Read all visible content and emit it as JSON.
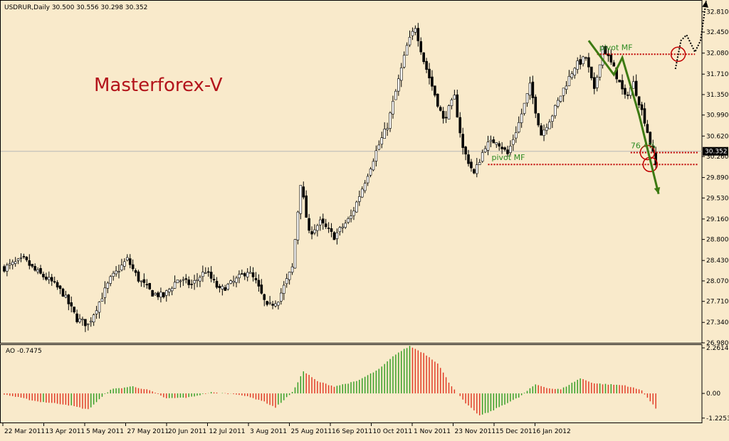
{
  "chart_data": [
    {
      "type": "candlestick",
      "symbol_header": "USDRUR,Daily  30.500 30.556 30.298 30.352",
      "watermark": "Masterforex-V",
      "y_ticks": [
        "32.810",
        "32.450",
        "32.080",
        "31.710",
        "31.350",
        "30.990",
        "30.620",
        "30.260",
        "29.890",
        "29.530",
        "29.160",
        "28.800",
        "28.430",
        "28.070",
        "27.710",
        "27.340",
        "26.980"
      ],
      "ylim": [
        26.98,
        32.99
      ],
      "current_price_label": "30.352",
      "current_price": 30.352,
      "x_ticks": [
        "22 Mar 2011",
        "13 Apr 2011",
        "5 May 2011",
        "27 May 2011",
        "20 Jun 2011",
        "12 Jul 2011",
        "3 Aug 2011",
        "25 Aug 2011",
        "16 Sep 2011",
        "10 Oct 2011",
        "1 Nov 2011",
        "23 Nov 2011",
        "15 Dec 2011",
        "6 Jan 2012"
      ],
      "close_path_anchors": [
        [
          0,
          28.3
        ],
        [
          7,
          28.45
        ],
        [
          11,
          28.25
        ],
        [
          17,
          28.05
        ],
        [
          21,
          27.85
        ],
        [
          26,
          27.4
        ],
        [
          30,
          27.3
        ],
        [
          34,
          27.7
        ],
        [
          38,
          28.1
        ],
        [
          44,
          28.45
        ],
        [
          48,
          28.1
        ],
        [
          53,
          27.85
        ],
        [
          57,
          27.8
        ],
        [
          62,
          28.1
        ],
        [
          67,
          28.0
        ],
        [
          72,
          28.25
        ],
        [
          77,
          27.9
        ],
        [
          82,
          28.05
        ],
        [
          87,
          28.25
        ],
        [
          90,
          28.05
        ],
        [
          94,
          27.6
        ],
        [
          98,
          27.75
        ],
        [
          103,
          28.3
        ],
        [
          106,
          29.8
        ],
        [
          109,
          28.9
        ],
        [
          113,
          29.1
        ],
        [
          118,
          28.85
        ],
        [
          124,
          29.2
        ],
        [
          128,
          29.7
        ],
        [
          133,
          30.35
        ],
        [
          137,
          30.8
        ],
        [
          141,
          31.6
        ],
        [
          144,
          32.2
        ],
        [
          147,
          32.55
        ],
        [
          150,
          31.95
        ],
        [
          153,
          31.5
        ],
        [
          157,
          30.9
        ],
        [
          161,
          31.3
        ],
        [
          164,
          30.4
        ],
        [
          168,
          29.95
        ],
        [
          172,
          30.45
        ],
        [
          176,
          30.55
        ],
        [
          180,
          30.3
        ],
        [
          184,
          30.85
        ],
        [
          188,
          31.5
        ],
        [
          192,
          30.65
        ],
        [
          196,
          31.0
        ],
        [
          200,
          31.45
        ],
        [
          204,
          31.85
        ],
        [
          208,
          32.0
        ],
        [
          211,
          31.4
        ],
        [
          214,
          32.2
        ],
        [
          218,
          31.8
        ],
        [
          222,
          31.3
        ],
        [
          225,
          31.55
        ],
        [
          229,
          30.9
        ],
        [
          233,
          30.1
        ]
      ],
      "annotations": [
        {
          "label": "pivot MF",
          "level": 32.06,
          "x_from_bar": 212,
          "x_to_bar": 247,
          "circle_bar": 241
        },
        {
          "label": "76.4%",
          "level": 30.33,
          "x_from_bar": 224,
          "x_to_bar": 248,
          "circle_bar": 230
        },
        {
          "label": "pivot MF",
          "level": 30.12,
          "x_from_bar": 173,
          "x_to_bar": 248,
          "circle_bar": 231
        }
      ],
      "projected_path": [
        [
          209,
          32.3
        ],
        [
          218,
          31.7
        ],
        [
          221,
          32.0
        ],
        [
          227,
          31.0
        ],
        [
          231,
          30.2
        ],
        [
          234,
          29.6
        ]
      ],
      "bullish_path": [
        [
          240,
          31.8
        ],
        [
          242,
          32.3
        ],
        [
          244,
          32.4
        ],
        [
          247,
          32.1
        ],
        [
          249,
          32.3
        ],
        [
          251,
          33.0
        ]
      ]
    },
    {
      "type": "bar",
      "title": "AO -0.7475",
      "y_ticks": [
        "2.2614",
        "0.00",
        "-1.2253"
      ],
      "ylim": [
        -1.48,
        2.37
      ],
      "value_anchors": [
        [
          0,
          -0.05
        ],
        [
          12,
          -0.4
        ],
        [
          22,
          -0.55
        ],
        [
          30,
          -0.8
        ],
        [
          38,
          0.2
        ],
        [
          46,
          0.35
        ],
        [
          52,
          0.15
        ],
        [
          58,
          -0.25
        ],
        [
          66,
          -0.2
        ],
        [
          74,
          0.05
        ],
        [
          84,
          -0.05
        ],
        [
          92,
          -0.35
        ],
        [
          97,
          -0.7
        ],
        [
          103,
          0.05
        ],
        [
          107,
          1.1
        ],
        [
          112,
          0.6
        ],
        [
          118,
          0.35
        ],
        [
          126,
          0.6
        ],
        [
          134,
          1.2
        ],
        [
          140,
          1.95
        ],
        [
          145,
          2.35
        ],
        [
          150,
          2.0
        ],
        [
          155,
          1.5
        ],
        [
          159,
          0.55
        ],
        [
          165,
          -0.5
        ],
        [
          170,
          -1.1
        ],
        [
          174,
          -0.9
        ],
        [
          178,
          -0.6
        ],
        [
          184,
          -0.2
        ],
        [
          190,
          0.45
        ],
        [
          195,
          0.25
        ],
        [
          199,
          0.2
        ],
        [
          206,
          0.75
        ],
        [
          211,
          0.5
        ],
        [
          216,
          0.45
        ],
        [
          222,
          0.4
        ],
        [
          228,
          0.15
        ],
        [
          233,
          -0.75
        ]
      ]
    }
  ]
}
